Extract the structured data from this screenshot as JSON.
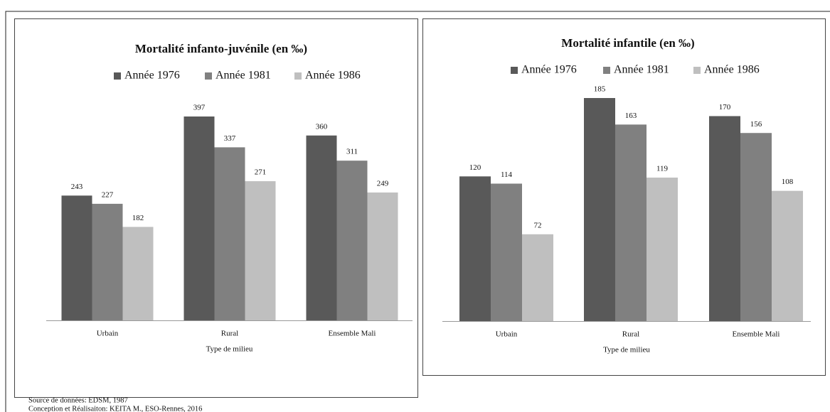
{
  "chart_data": [
    {
      "type": "bar",
      "title": "Mortalité infanto-juvénile  (en ‰)",
      "x_label": "Type de milieu",
      "categories": [
        "Urbain",
        "Rural",
        "Ensemble Mali"
      ],
      "series": [
        {
          "name": "Année 1976",
          "color": "#595959",
          "values": [
            243,
            397,
            360
          ]
        },
        {
          "name": "Année 1981",
          "color": "#808080",
          "values": [
            227,
            337,
            311
          ]
        },
        {
          "name": "Année 1986",
          "color": "#bfbfbf",
          "values": [
            182,
            271,
            249
          ]
        }
      ]
    },
    {
      "type": "bar",
      "title": "Mortalité infantile (en ‰)",
      "x_label": "Type de milieu",
      "categories": [
        "Urbain",
        "Rural",
        "Ensemble Mali"
      ],
      "series": [
        {
          "name": "Année 1976",
          "color": "#595959",
          "values": [
            120,
            185,
            170
          ]
        },
        {
          "name": "Année 1981",
          "color": "#808080",
          "values": [
            114,
            163,
            156
          ]
        },
        {
          "name": "Année 1986",
          "color": "#bfbfbf",
          "values": [
            72,
            119,
            108
          ]
        }
      ]
    }
  ],
  "notes": [
    "Source de données: EDSM, 1987",
    "Conception et Réalisaiton: KEITA M., ESO-Rennes, 2016"
  ]
}
